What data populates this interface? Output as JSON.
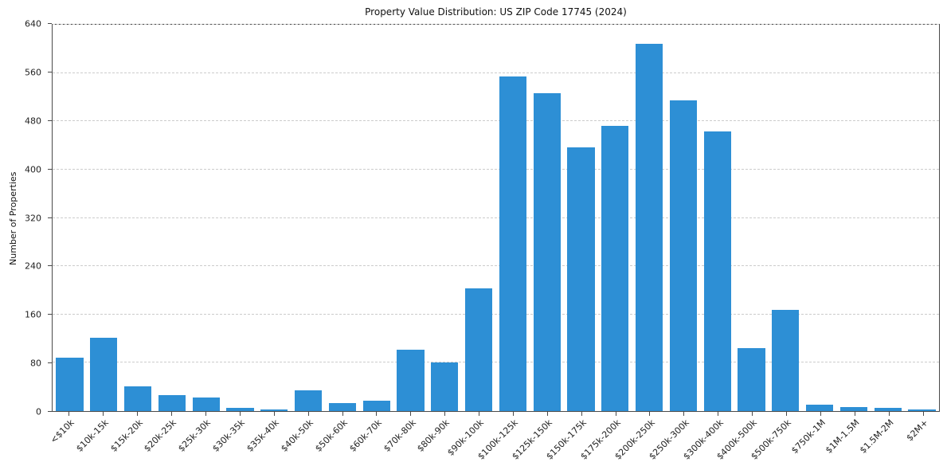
{
  "chart_data": {
    "type": "bar",
    "title": "Property Value Distribution: US ZIP Code 17745 (2024)",
    "xlabel": "",
    "ylabel": "Number of Properties",
    "categories": [
      "<$10k",
      "$10k-15k",
      "$15k-20k",
      "$20k-25k",
      "$25k-30k",
      "$30k-35k",
      "$35k-40k",
      "$40k-50k",
      "$50k-60k",
      "$60k-70k",
      "$70k-80k",
      "$80k-90k",
      "$90k-100k",
      "$100k-125k",
      "$125k-150k",
      "$150k-175k",
      "$175k-200k",
      "$200k-250k",
      "$250k-300k",
      "$300k-400k",
      "$400k-500k",
      "$500k-750k",
      "$750k-1M",
      "$1M-1.5M",
      "$1.5M-2M",
      "$2M+"
    ],
    "values": [
      88,
      122,
      41,
      27,
      23,
      5,
      2,
      34,
      13,
      17,
      101,
      80,
      203,
      554,
      527,
      437,
      472,
      608,
      515,
      463,
      104,
      168,
      10,
      7,
      5,
      3
    ],
    "ylim": [
      0,
      640
    ],
    "yticks": [
      0,
      80,
      160,
      240,
      320,
      400,
      480,
      560,
      640
    ],
    "grid": "horizontal-dashed",
    "legend": "none",
    "bar_color": "#2d8fd5",
    "axis_color": "#4a4a4a",
    "grid_color": "#cccccc"
  }
}
